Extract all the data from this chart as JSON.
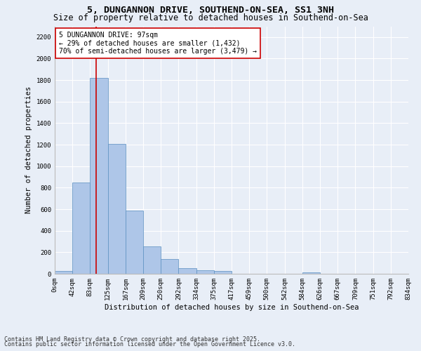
{
  "title_line1": "5, DUNGANNON DRIVE, SOUTHEND-ON-SEA, SS1 3NH",
  "title_line2": "Size of property relative to detached houses in Southend-on-Sea",
  "xlabel": "Distribution of detached houses by size in Southend-on-Sea",
  "ylabel": "Number of detached properties",
  "bin_edges": [
    0,
    42,
    83,
    125,
    167,
    209,
    250,
    292,
    334,
    375,
    417,
    459,
    500,
    542,
    584,
    626,
    667,
    709,
    751,
    792,
    834
  ],
  "bar_heights": [
    25,
    850,
    1820,
    1210,
    590,
    255,
    135,
    50,
    35,
    25,
    0,
    0,
    0,
    0,
    15,
    0,
    0,
    0,
    0,
    0
  ],
  "bar_color": "#aec6e8",
  "bar_edge_color": "#5a8fc0",
  "property_value": 97,
  "red_line_color": "#cc0000",
  "annotation_text": "5 DUNGANNON DRIVE: 97sqm\n← 29% of detached houses are smaller (1,432)\n70% of semi-detached houses are larger (3,479) →",
  "annotation_box_color": "#ffffff",
  "annotation_box_edge_color": "#cc0000",
  "ylim": [
    0,
    2300
  ],
  "yticks": [
    0,
    200,
    400,
    600,
    800,
    1000,
    1200,
    1400,
    1600,
    1800,
    2000,
    2200
  ],
  "background_color": "#e8eef7",
  "grid_color": "#ffffff",
  "footer_line1": "Contains HM Land Registry data © Crown copyright and database right 2025.",
  "footer_line2": "Contains public sector information licensed under the Open Government Licence v3.0.",
  "title_fontsize": 9.5,
  "subtitle_fontsize": 8.5,
  "axis_label_fontsize": 7.5,
  "tick_fontsize": 6.5,
  "annotation_fontsize": 7,
  "footer_fontsize": 6
}
